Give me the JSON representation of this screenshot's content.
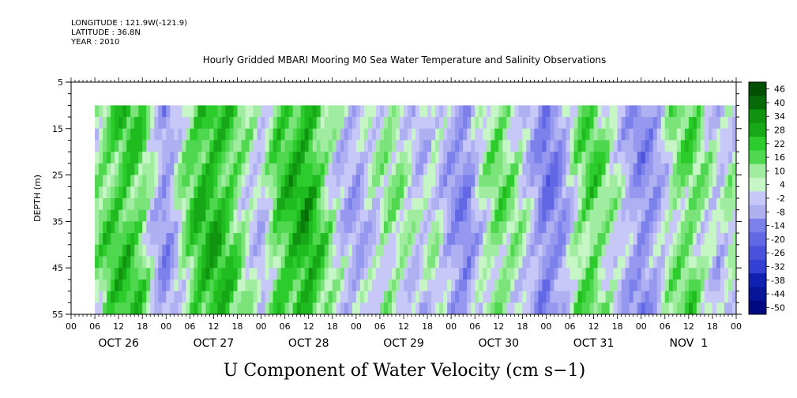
{
  "header": {
    "longitude": "LONGITUDE : 121.9W(-121.9)",
    "latitude": "LATITUDE : 36.8N",
    "year": "YEAR : 2010",
    "title": "Hourly Gridded MBARI Mooring M0 Sea Water Temperature and Salinity Observations"
  },
  "chart_data": {
    "type": "heatmap",
    "title": "Hourly Gridded MBARI Mooring M0 Sea Water Temperature and Salinity Observations",
    "variable_label": "U Component of Water Velocity (cm s−1)",
    "ylabel": "DEPTH (m)",
    "ylim": [
      5,
      55
    ],
    "y_inverted": true,
    "y_ticks": [
      "5",
      "15",
      "25",
      "35",
      "45",
      "55"
    ],
    "x_hour_ticks": [
      "00",
      "06",
      "12",
      "18",
      "00",
      "06",
      "12",
      "18",
      "00",
      "06",
      "12",
      "18",
      "00",
      "06",
      "12",
      "18",
      "00",
      "06",
      "12",
      "18",
      "00",
      "06",
      "12",
      "18",
      "00",
      "06",
      "12",
      "18",
      "00"
    ],
    "x_day_labels": [
      "OCT 26",
      "OCT 27",
      "OCT 28",
      "OCT 29",
      "OCT 30",
      "OCT 31",
      "NOV  1"
    ],
    "x_range_hours": [
      0,
      168
    ],
    "data_start_hour": 6,
    "data_depth_range": [
      10,
      55
    ],
    "colorbar": {
      "labels": [
        "46",
        "40",
        "34",
        "28",
        "22",
        "16",
        "10",
        "4",
        "-2",
        "-8",
        "-14",
        "-20",
        "-26",
        "-32",
        "-38",
        "-44",
        "-50"
      ],
      "min": -50,
      "max": 46
    },
    "column_velocity_profile": [
      {
        "hour": 6,
        "u": 6
      },
      {
        "hour": 10,
        "u": 14
      },
      {
        "hour": 14,
        "u": 18
      },
      {
        "hour": 18,
        "u": 12
      },
      {
        "hour": 21,
        "u": -4
      },
      {
        "hour": 24,
        "u": -16
      },
      {
        "hour": 28,
        "u": 4
      },
      {
        "hour": 32,
        "u": 18
      },
      {
        "hour": 36,
        "u": 22
      },
      {
        "hour": 40,
        "u": 16
      },
      {
        "hour": 44,
        "u": 4
      },
      {
        "hour": 48,
        "u": -6
      },
      {
        "hour": 52,
        "u": 14
      },
      {
        "hour": 56,
        "u": 20
      },
      {
        "hour": 60,
        "u": 24
      },
      {
        "hour": 64,
        "u": 10
      },
      {
        "hour": 68,
        "u": -4
      },
      {
        "hour": 72,
        "u": -10
      },
      {
        "hour": 76,
        "u": -2
      },
      {
        "hour": 80,
        "u": 6
      },
      {
        "hour": 84,
        "u": 4
      },
      {
        "hour": 88,
        "u": -6
      },
      {
        "hour": 92,
        "u": 2
      },
      {
        "hour": 96,
        "u": -12
      },
      {
        "hour": 100,
        "u": -18
      },
      {
        "hour": 104,
        "u": 2
      },
      {
        "hour": 108,
        "u": 10
      },
      {
        "hour": 112,
        "u": 6
      },
      {
        "hour": 116,
        "u": -6
      },
      {
        "hour": 120,
        "u": -22
      },
      {
        "hour": 124,
        "u": -14
      },
      {
        "hour": 128,
        "u": 8
      },
      {
        "hour": 132,
        "u": 14
      },
      {
        "hour": 136,
        "u": 4
      },
      {
        "hour": 140,
        "u": -6
      },
      {
        "hour": 144,
        "u": -18
      },
      {
        "hour": 148,
        "u": -10
      },
      {
        "hour": 152,
        "u": 6
      },
      {
        "hour": 156,
        "u": 12
      },
      {
        "hour": 160,
        "u": 4
      },
      {
        "hour": 164,
        "u": -6
      },
      {
        "hour": 166,
        "u": 2
      }
    ]
  },
  "colors": {
    "positive_palette": [
      "#c6f5c6",
      "#a0eca0",
      "#7ae47a",
      "#4fd84f",
      "#2dcc2d",
      "#1fbb1f",
      "#17a817",
      "#109410",
      "#0a7e0a",
      "#066a06",
      "#034f03"
    ],
    "negative_palette": [
      "#c8c8f8",
      "#aeb0f2",
      "#9598ee",
      "#7b80ea",
      "#6268e4",
      "#4a52dc",
      "#3440d4",
      "#2030c8",
      "#1020b0",
      "#081598",
      "#000a80"
    ]
  }
}
